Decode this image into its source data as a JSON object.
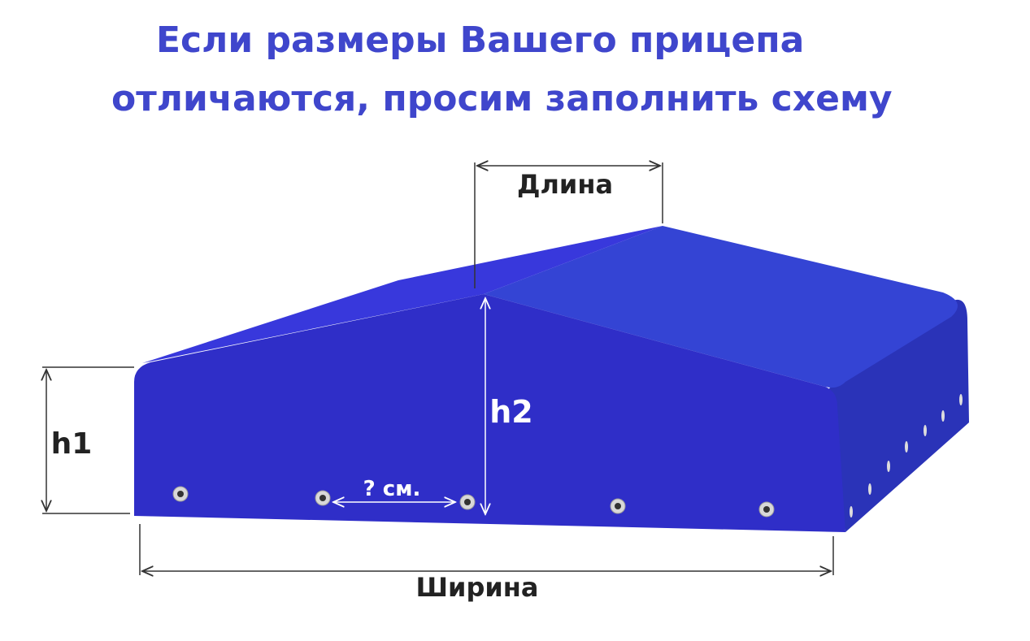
{
  "title": {
    "line1": "Если размеры Вашего прицепа",
    "line2": "отличаются, просим заполнить схему"
  },
  "diagram": {
    "labels": {
      "length": "Длина",
      "h1": "h1",
      "h2": "h2",
      "width": "Ширина",
      "grommet_spacing": "? см."
    },
    "colors": {
      "title": "#3f46cc",
      "front_face": "#2f2ec8",
      "roof_left": "#3838dc",
      "roof_right": "#3444d4",
      "side_face": "#2a33b8"
    }
  }
}
